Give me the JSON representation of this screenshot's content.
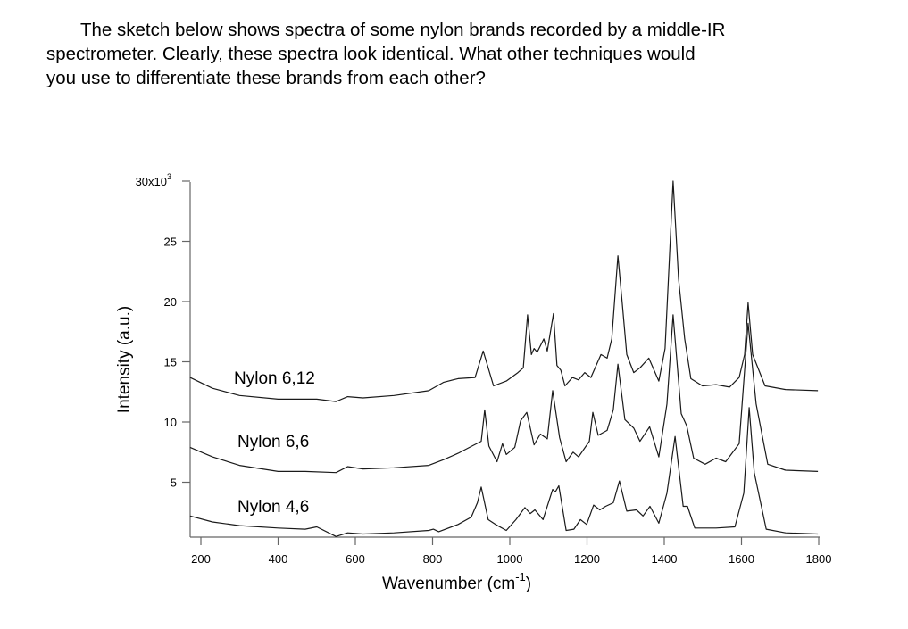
{
  "question": {
    "lines": [
      "The sketch below shows spectra of some nylon brands recorded by a middle-IR",
      "spectrometer. Clearly, these spectra look identical. What other techniques would",
      "you use to differentiate these brands from each other?"
    ]
  },
  "chart_data": {
    "type": "line",
    "title": "",
    "xlabel": "Wavenumber (cm",
    "xlabel_superscript": "-1",
    "xlabel_close": ")",
    "ylabel": "Intensity (a.u.)",
    "xlim": [
      172,
      1800
    ],
    "ylim": [
      0.45,
      30
    ],
    "x_ticks": [
      200,
      400,
      600,
      800,
      1000,
      1200,
      1400,
      1600,
      1800
    ],
    "y_ticks": [
      5,
      10,
      15,
      20,
      25,
      30
    ],
    "y_tick_labels": [
      "5",
      "10",
      "15",
      "20",
      "25",
      "30x10"
    ],
    "y_top_label_exponent": "3",
    "grid": false,
    "line_color": "#1a1a1a",
    "series": [
      {
        "name": "Nylon 6,12",
        "x": [
          172,
          230,
          300,
          400,
          500,
          550,
          580,
          620,
          700,
          790,
          829,
          866,
          910,
          931,
          958,
          991,
          1021,
          1035,
          1046,
          1056,
          1063,
          1071,
          1088,
          1097,
          1113,
          1122,
          1132,
          1143,
          1162,
          1178,
          1194,
          1210,
          1236,
          1252,
          1264,
          1280,
          1291,
          1303,
          1321,
          1337,
          1360,
          1386,
          1402,
          1423,
          1437,
          1453,
          1469,
          1499,
          1534,
          1569,
          1594,
          1608,
          1617,
          1629,
          1661,
          1714,
          1798
        ],
        "y": [
          13.7,
          12.8,
          12.2,
          11.9,
          11.9,
          11.7,
          12.1,
          12.0,
          12.2,
          12.6,
          13.3,
          13.6,
          13.7,
          15.9,
          13.0,
          13.4,
          14.1,
          14.5,
          18.9,
          15.6,
          16.1,
          15.8,
          16.9,
          15.9,
          19.0,
          14.7,
          14.3,
          13.0,
          13.7,
          13.5,
          14.1,
          13.7,
          15.6,
          15.3,
          16.9,
          23.8,
          19.9,
          15.6,
          14.1,
          14.5,
          15.3,
          13.4,
          16.1,
          30.0,
          21.9,
          16.9,
          13.6,
          13.0,
          13.1,
          12.9,
          13.7,
          15.6,
          19.9,
          15.6,
          13.0,
          12.7,
          12.6
        ]
      },
      {
        "name": "Nylon 6,6",
        "x": [
          172,
          230,
          300,
          400,
          470,
          550,
          580,
          620,
          700,
          790,
          830,
          866,
          908,
          926,
          935,
          946,
          967,
          981,
          991,
          1013,
          1028,
          1044,
          1063,
          1079,
          1097,
          1111,
          1129,
          1146,
          1164,
          1178,
          1206,
          1215,
          1229,
          1252,
          1268,
          1280,
          1298,
          1321,
          1337,
          1362,
          1386,
          1407,
          1423,
          1444,
          1458,
          1476,
          1506,
          1534,
          1559,
          1594,
          1617,
          1638,
          1668,
          1714,
          1798
        ],
        "y": [
          7.9,
          7.1,
          6.4,
          5.9,
          5.9,
          5.8,
          6.3,
          6.1,
          6.2,
          6.4,
          6.9,
          7.4,
          8.1,
          8.4,
          11.0,
          8.0,
          6.7,
          8.2,
          7.3,
          7.9,
          10.1,
          10.8,
          8.1,
          9.0,
          8.6,
          12.6,
          8.7,
          6.7,
          7.5,
          7.1,
          8.4,
          10.8,
          8.9,
          9.3,
          11.0,
          14.8,
          10.2,
          9.5,
          8.4,
          9.6,
          7.1,
          11.5,
          18.9,
          10.7,
          9.7,
          7.0,
          6.5,
          7.0,
          6.7,
          8.2,
          18.2,
          11.5,
          6.5,
          6.0,
          5.9
        ]
      },
      {
        "name": "Nylon 4,6",
        "x": [
          172,
          230,
          300,
          400,
          470,
          500,
          550,
          580,
          620,
          700,
          790,
          802,
          816,
          866,
          900,
          916,
          926,
          944,
          963,
          991,
          1016,
          1039,
          1053,
          1065,
          1086,
          1111,
          1118,
          1127,
          1146,
          1166,
          1183,
          1199,
          1217,
          1233,
          1248,
          1268,
          1284,
          1303,
          1328,
          1345,
          1363,
          1386,
          1407,
          1428,
          1449,
          1460,
          1479,
          1534,
          1583,
          1606,
          1620,
          1633,
          1664,
          1714,
          1798
        ],
        "y": [
          2.2,
          1.7,
          1.4,
          1.2,
          1.1,
          1.3,
          0.5,
          0.8,
          0.7,
          0.8,
          1.0,
          1.1,
          0.9,
          1.5,
          2.1,
          3.3,
          4.6,
          1.9,
          1.5,
          1.0,
          1.9,
          2.9,
          2.4,
          2.7,
          1.9,
          4.4,
          4.2,
          4.7,
          1.0,
          1.1,
          1.9,
          1.5,
          3.1,
          2.7,
          3.0,
          3.3,
          5.1,
          2.6,
          2.7,
          2.2,
          3.0,
          1.6,
          4.1,
          8.8,
          3.0,
          3.0,
          1.2,
          1.2,
          1.3,
          4.1,
          11.2,
          5.8,
          1.1,
          0.8,
          0.7
        ]
      }
    ]
  }
}
